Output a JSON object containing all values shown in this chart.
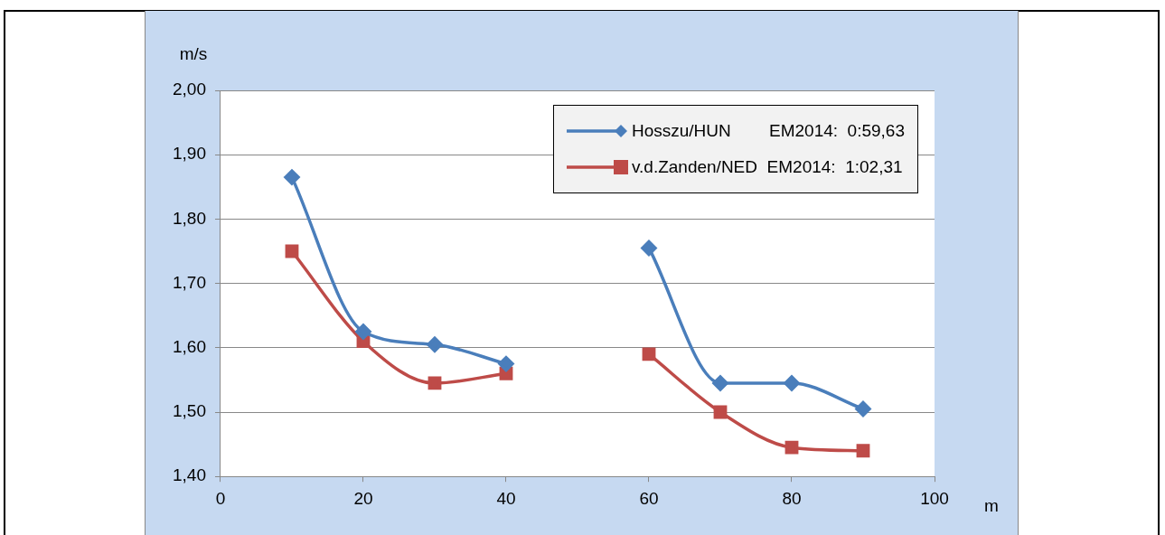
{
  "chart_data": {
    "type": "line",
    "xlabel": "m",
    "ylabel": "m/s",
    "x": [
      10,
      20,
      30,
      40,
      50,
      60,
      70,
      80,
      90
    ],
    "series": [
      {
        "name": "Hosszu/HUN        EM2014:  0:59,63",
        "color": "#4a7ebb",
        "marker": "diamond",
        "values": [
          1.865,
          1.625,
          1.605,
          1.575,
          null,
          1.755,
          1.545,
          1.545,
          1.505
        ]
      },
      {
        "name": "v.d.Zanden/NED  EM2014:  1:02,31",
        "color": "#be4b48",
        "marker": "square",
        "values": [
          1.75,
          1.61,
          1.545,
          1.56,
          null,
          1.59,
          1.5,
          1.445,
          1.44
        ]
      }
    ],
    "xlim": [
      0,
      100
    ],
    "xticks": [
      0,
      20,
      40,
      60,
      80,
      100
    ],
    "ylim": [
      1.4,
      2.0
    ],
    "yticks": [
      {
        "value": 1.4,
        "label": "1,40"
      },
      {
        "value": 1.5,
        "label": "1,50"
      },
      {
        "value": 1.6,
        "label": "1,60"
      },
      {
        "value": 1.7,
        "label": "1,70"
      },
      {
        "value": 1.8,
        "label": "1,80"
      },
      {
        "value": 1.9,
        "label": "1,90"
      },
      {
        "value": 2.0,
        "label": "2,00"
      }
    ],
    "grid": "y",
    "legend": "top right"
  }
}
